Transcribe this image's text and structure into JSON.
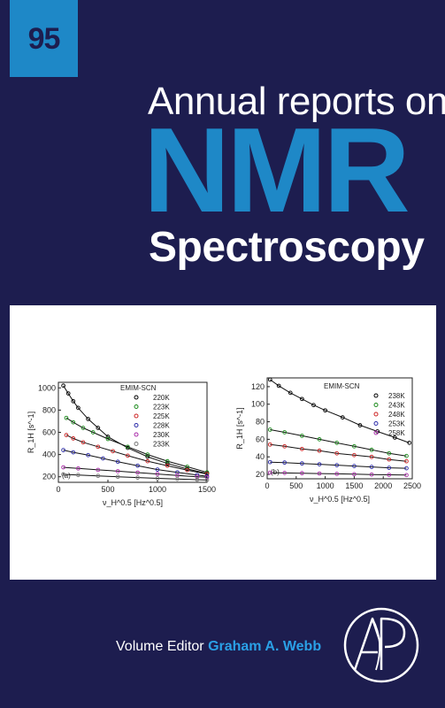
{
  "cover": {
    "volume_number": "95",
    "series_line": "Annual reports on",
    "title_main": "NMR",
    "title_sub": "Spectroscopy",
    "editor_label": "Volume Editor",
    "editor_name": "Graham A. Webb",
    "publisher_logo": "elsevier-ap-logo",
    "colors": {
      "background": "#1d1d4f",
      "accent": "#1e88c7",
      "text": "#ffffff"
    }
  },
  "chart_data": [
    {
      "type": "scatter",
      "panel_label": "(a)",
      "legend_title": "EMIM-SCN",
      "xlabel": "ν_H^0.5 [Hz^0.5]",
      "ylabel": "R_1H [s^-1]",
      "xlim": [
        0,
        1500
      ],
      "ylim": [
        150,
        1050
      ],
      "x_ticks": [
        "0",
        "500",
        "1000",
        "1500"
      ],
      "y_ticks": [
        "200",
        "400",
        "600",
        "800",
        "1000"
      ],
      "series": [
        {
          "name": "220K",
          "color": "#000000",
          "x": [
            50,
            100,
            150,
            200,
            300,
            400,
            500,
            700,
            900,
            1100,
            1300,
            1500
          ],
          "y": [
            1020,
            950,
            880,
            820,
            720,
            640,
            560,
            460,
            380,
            320,
            270,
            230
          ]
        },
        {
          "name": "223K",
          "color": "#1a8a1a",
          "x": [
            80,
            150,
            250,
            350,
            500,
            700,
            900,
            1100,
            1300,
            1500
          ],
          "y": [
            730,
            690,
            640,
            600,
            540,
            470,
            400,
            340,
            290,
            240
          ]
        },
        {
          "name": "225K",
          "color": "#cc2222",
          "x": [
            80,
            150,
            250,
            400,
            550,
            700,
            900,
            1100,
            1300,
            1500
          ],
          "y": [
            575,
            545,
            510,
            470,
            430,
            390,
            340,
            300,
            260,
            225
          ]
        },
        {
          "name": "228K",
          "color": "#2a2aa8",
          "x": [
            50,
            150,
            300,
            450,
            600,
            800,
            1000,
            1200,
            1400,
            1500
          ],
          "y": [
            440,
            420,
            395,
            365,
            335,
            300,
            265,
            240,
            215,
            205
          ]
        },
        {
          "name": "230K",
          "color": "#a82aa8",
          "x": [
            50,
            200,
            400,
            600,
            800,
            1000,
            1200,
            1400,
            1500
          ],
          "y": [
            285,
            275,
            262,
            250,
            238,
            225,
            212,
            200,
            195
          ]
        },
        {
          "name": "233K",
          "color": "#777777",
          "x": [
            50,
            200,
            400,
            600,
            800,
            1000,
            1200,
            1400,
            1500
          ],
          "y": [
            222,
            216,
            208,
            200,
            193,
            186,
            180,
            174,
            171
          ]
        }
      ]
    },
    {
      "type": "scatter",
      "panel_label": "(b)",
      "legend_title": "EMIM-SCN",
      "xlabel": "ν_H^0.5 [Hz^0.5]",
      "ylabel": "R_1H [s^-1]",
      "xlim": [
        0,
        2500
      ],
      "ylim": [
        15,
        130
      ],
      "x_ticks": [
        "0",
        "500",
        "1000",
        "1500",
        "2000",
        "2500"
      ],
      "y_ticks": [
        "20",
        "40",
        "60",
        "80",
        "100",
        "120"
      ],
      "series": [
        {
          "name": "238K",
          "color": "#000000",
          "x": [
            50,
            200,
            400,
            600,
            800,
            1000,
            1300,
            1600,
            1900,
            2200,
            2450
          ],
          "y": [
            128,
            121,
            113,
            106,
            99,
            93,
            85,
            76,
            69,
            62,
            56
          ]
        },
        {
          "name": "243K",
          "color": "#1a8a1a",
          "x": [
            50,
            300,
            600,
            900,
            1200,
            1500,
            1800,
            2100,
            2400
          ],
          "y": [
            71,
            68,
            64,
            60,
            56,
            52,
            48,
            44,
            41
          ]
        },
        {
          "name": "248K",
          "color": "#cc2222",
          "x": [
            50,
            300,
            600,
            900,
            1200,
            1500,
            1800,
            2100,
            2400
          ],
          "y": [
            54,
            52,
            49,
            47,
            44,
            42,
            40,
            37,
            35
          ]
        },
        {
          "name": "253K",
          "color": "#2a2aa8",
          "x": [
            50,
            300,
            600,
            900,
            1200,
            1500,
            1800,
            2100,
            2400
          ],
          "y": [
            34,
            33.5,
            32.5,
            31.5,
            30.5,
            29.5,
            28.5,
            27.5,
            27
          ]
        },
        {
          "name": "258K",
          "color": "#a82aa8",
          "x": [
            50,
            300,
            600,
            900,
            1200,
            1500,
            1800,
            2100,
            2400
          ],
          "y": [
            22,
            21.7,
            21.4,
            21,
            20.6,
            20.2,
            19.8,
            19.5,
            19.2
          ]
        }
      ]
    }
  ]
}
